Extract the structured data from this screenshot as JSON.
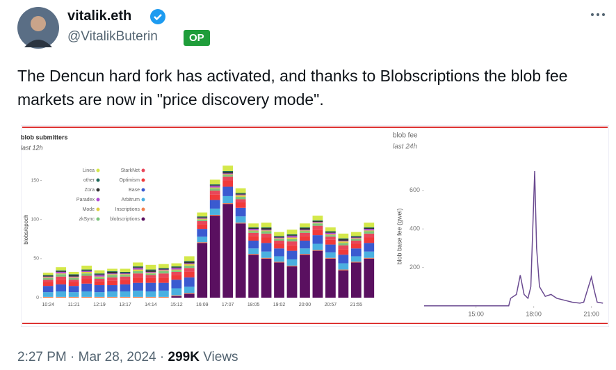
{
  "tweet": {
    "name": "vitalik.eth",
    "handle": "@VitalikButerin",
    "badge": "OP",
    "text": "The Dencun hard fork has activated, and thanks to Blobscriptions the blob fee markets are now in \"price discovery mode\".",
    "timestamp": "2:27 PM · Mar 28, 2024",
    "separator": "·",
    "views_count": "299K",
    "views_label": "Views"
  },
  "chart_data": [
    {
      "type": "stacked-bar",
      "title": "blob submitters",
      "subtitle": "last 12h",
      "y_label": "blobs/epoch",
      "categories": [
        "10:24",
        null,
        "11:21",
        null,
        "12:19",
        null,
        "13:17",
        null,
        "14:14",
        null,
        "15:12",
        null,
        "16:09",
        null,
        "17:07",
        null,
        "18:05",
        null,
        "19:02",
        null,
        "20:00",
        null,
        "20:57",
        null,
        "21:55",
        null
      ],
      "ylim": [
        0,
        170
      ],
      "yticks": [
        0,
        50,
        100,
        150
      ],
      "series": [
        {
          "name": "Linea",
          "color": "#d4e84a",
          "values": [
            3,
            4,
            3,
            5,
            4,
            3,
            4,
            5,
            6,
            5,
            4,
            6,
            5,
            6,
            7,
            6,
            5,
            6,
            5,
            6,
            5,
            6,
            5,
            6,
            5,
            6
          ]
        },
        {
          "name": "other",
          "color": "#1f6b5c",
          "values": [
            1,
            1,
            1,
            1,
            1,
            1,
            1,
            1,
            1,
            1,
            1,
            1,
            1,
            1,
            1,
            1,
            1,
            1,
            1,
            1,
            1,
            1,
            1,
            1,
            1,
            1
          ]
        },
        {
          "name": "Zora",
          "color": "#333333",
          "values": [
            1,
            1,
            2,
            1,
            1,
            2,
            1,
            1,
            2,
            1,
            1,
            2,
            1,
            1,
            2,
            1,
            1,
            2,
            1,
            1,
            2,
            1,
            1,
            2,
            1,
            1
          ]
        },
        {
          "name": "Paradex",
          "color": "#b04ad0",
          "values": [
            1,
            2,
            1,
            1,
            2,
            1,
            1,
            2,
            1,
            1,
            2,
            1,
            1,
            2,
            1,
            1,
            2,
            1,
            1,
            2,
            1,
            1,
            2,
            1,
            1,
            2
          ]
        },
        {
          "name": "Mode",
          "color": "#e0d040",
          "values": [
            1,
            1,
            1,
            2,
            1,
            1,
            1,
            2,
            1,
            1,
            1,
            2,
            1,
            1,
            1,
            2,
            1,
            1,
            1,
            2,
            1,
            1,
            1,
            2,
            1,
            1
          ]
        },
        {
          "name": "zkSync",
          "color": "#7cc47c",
          "values": [
            2,
            3,
            2,
            3,
            2,
            3,
            2,
            3,
            2,
            3,
            2,
            3,
            2,
            3,
            2,
            3,
            2,
            3,
            2,
            3,
            2,
            3,
            2,
            3,
            2,
            3
          ]
        },
        {
          "name": "StarkNet",
          "color": "#e8475a",
          "values": [
            3,
            4,
            3,
            4,
            3,
            4,
            4,
            5,
            4,
            5,
            4,
            5,
            4,
            5,
            5,
            4,
            4,
            5,
            4,
            5,
            4,
            5,
            4,
            5,
            4,
            5
          ]
        },
        {
          "name": "Optimism",
          "color": "#f03a3a",
          "values": [
            5,
            6,
            5,
            6,
            5,
            6,
            6,
            7,
            6,
            7,
            6,
            7,
            6,
            7,
            8,
            7,
            6,
            7,
            6,
            7,
            6,
            7,
            6,
            7,
            6,
            7
          ]
        },
        {
          "name": "Base",
          "color": "#3a5ad0",
          "values": [
            8,
            9,
            8,
            10,
            9,
            8,
            9,
            10,
            11,
            10,
            11,
            12,
            10,
            11,
            12,
            11,
            10,
            11,
            10,
            11,
            10,
            11,
            10,
            11,
            10,
            11
          ]
        },
        {
          "name": "Arbitrum",
          "color": "#4ab0e0",
          "values": [
            6,
            7,
            6,
            7,
            6,
            7,
            7,
            8,
            7,
            8,
            9,
            8,
            7,
            8,
            9,
            8,
            7,
            8,
            7,
            8,
            7,
            8,
            7,
            8,
            7,
            8
          ]
        },
        {
          "name": "Inscriptions",
          "color": "#f08050",
          "values": [
            1,
            1,
            1,
            1,
            1,
            1,
            1,
            1,
            1,
            1,
            1,
            1,
            1,
            1,
            1,
            1,
            1,
            1,
            1,
            1,
            1,
            1,
            1,
            1,
            1,
            1
          ]
        },
        {
          "name": "blobscriptions",
          "color": "#5a1060",
          "values": [
            0,
            0,
            0,
            0,
            0,
            0,
            0,
            0,
            0,
            0,
            2,
            5,
            70,
            105,
            120,
            95,
            55,
            50,
            45,
            40,
            55,
            60,
            50,
            35,
            45,
            50
          ]
        }
      ]
    },
    {
      "type": "line",
      "title": "blob fee",
      "subtitle": "last 24h",
      "y_label": "blob base fee (gwei)",
      "x": [
        12.3,
        16.7,
        16.8,
        17.1,
        17.3,
        17.5,
        17.7,
        17.85,
        18.05,
        18.15,
        18.3,
        18.6,
        18.9,
        19.2,
        19.6,
        20.0,
        20.4,
        20.6,
        21.0,
        21.15,
        21.3,
        21.6
      ],
      "xlim": [
        12.3,
        21.7
      ],
      "xticks": [
        {
          "value": 15,
          "label": "15:00"
        },
        {
          "value": 18,
          "label": "18:00"
        },
        {
          "value": 21,
          "label": "21:00"
        }
      ],
      "ylim": [
        0,
        740
      ],
      "yticks": [
        200,
        400,
        600
      ],
      "series": [
        {
          "name": "blob base fee",
          "color": "#6a4a90",
          "values": [
            1,
            1,
            40,
            60,
            160,
            60,
            40,
            100,
            700,
            300,
            100,
            50,
            60,
            40,
            30,
            20,
            15,
            20,
            150,
            80,
            20,
            15
          ]
        }
      ]
    }
  ]
}
